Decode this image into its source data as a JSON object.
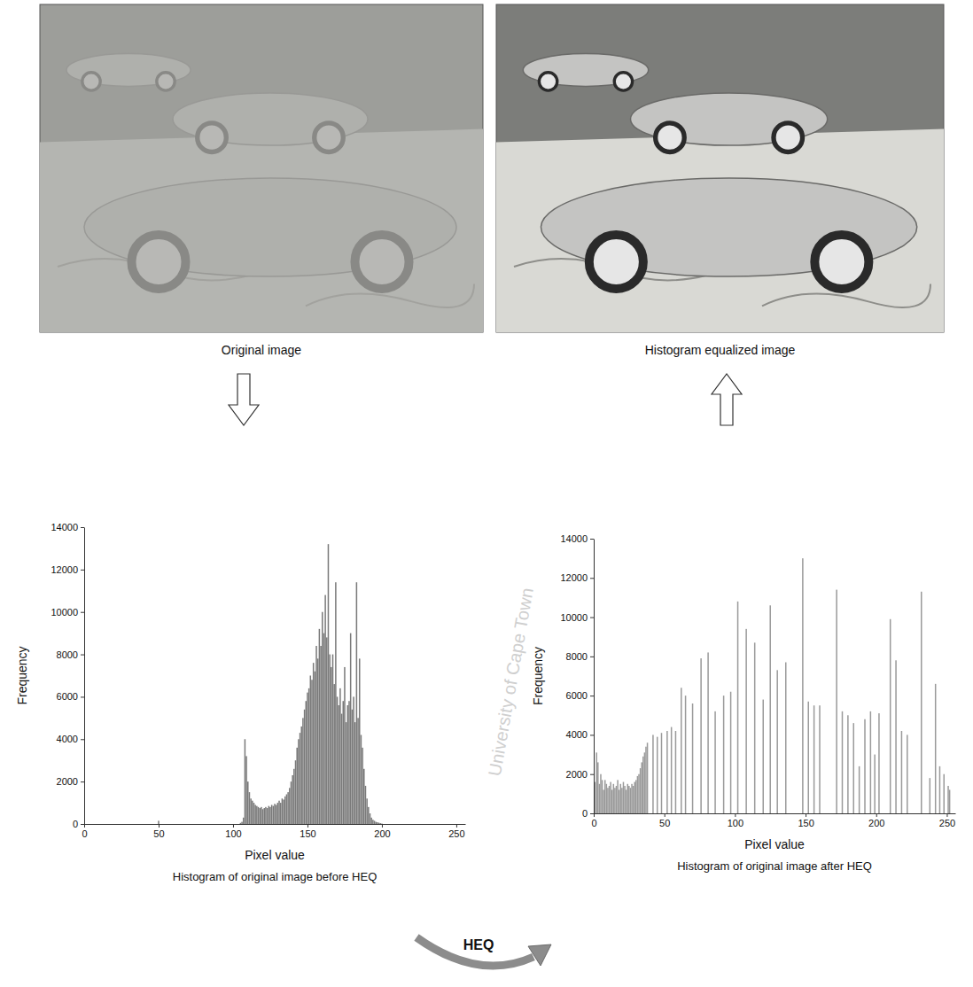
{
  "figure": {
    "images": [
      {
        "caption": "Original image"
      },
      {
        "caption": "Histogram equalized image"
      }
    ],
    "process_label": "HEQ",
    "watermark": "University of Cape Town"
  },
  "chart_data": [
    {
      "type": "bar",
      "title": "Histogram of original image before HEQ",
      "x_label": "Pixel value",
      "y_label": "Frequency",
      "x": [
        50,
        105,
        106,
        107,
        108,
        109,
        110,
        111,
        112,
        113,
        114,
        115,
        116,
        117,
        118,
        119,
        120,
        121,
        122,
        123,
        124,
        125,
        126,
        127,
        128,
        129,
        130,
        131,
        132,
        133,
        134,
        135,
        136,
        137,
        138,
        139,
        140,
        141,
        142,
        143,
        144,
        145,
        146,
        147,
        148,
        149,
        150,
        151,
        152,
        153,
        154,
        155,
        156,
        157,
        158,
        159,
        160,
        161,
        162,
        163,
        164,
        165,
        166,
        167,
        168,
        169,
        170,
        171,
        172,
        173,
        174,
        175,
        176,
        177,
        178,
        179,
        180,
        181,
        182,
        183,
        184,
        185,
        186,
        187,
        188,
        189,
        190,
        191,
        192,
        193,
        194,
        195,
        196,
        197,
        198,
        199,
        200
      ],
      "values": [
        150,
        50,
        100,
        300,
        4000,
        3200,
        2000,
        1500,
        1200,
        1100,
        1000,
        900,
        850,
        800,
        750,
        800,
        700,
        750,
        800,
        750,
        850,
        800,
        900,
        850,
        950,
        900,
        1000,
        1100,
        1000,
        1200,
        1150,
        1300,
        1400,
        1500,
        1700,
        2000,
        2300,
        2600,
        3000,
        3600,
        4000,
        4300,
        4600,
        5000,
        5400,
        5800,
        6200,
        6400,
        7000,
        6800,
        7600,
        7200,
        8400,
        7800,
        9200,
        8400,
        10000,
        9000,
        10800,
        8800,
        13200,
        8000,
        7400,
        8000,
        6600,
        11400,
        6000,
        5600,
        6400,
        5200,
        5800,
        7400,
        4800,
        5600,
        5800,
        9000,
        5400,
        6000,
        4800,
        11400,
        5000,
        7800,
        4200,
        3600,
        2600,
        1800,
        1200,
        800,
        500,
        300,
        200,
        150,
        100,
        80,
        60,
        40,
        20
      ],
      "color": "#7a7a7a",
      "xlim": [
        0,
        256
      ],
      "xticks": [
        0,
        50,
        100,
        150,
        200,
        250
      ],
      "ylim": [
        0,
        14000
      ],
      "yticks": [
        0,
        2000,
        4000,
        6000,
        8000,
        10000,
        12000,
        14000
      ]
    },
    {
      "type": "bar",
      "title": "Histogram of original image after HEQ",
      "x_label": "Pixel value",
      "y_label": "Frequency",
      "x": [
        0,
        1,
        2,
        3,
        4,
        5,
        6,
        7,
        8,
        9,
        10,
        11,
        12,
        13,
        14,
        15,
        16,
        17,
        18,
        19,
        20,
        21,
        22,
        23,
        24,
        25,
        26,
        27,
        28,
        29,
        30,
        31,
        32,
        33,
        34,
        35,
        36,
        37,
        38,
        42,
        45,
        48,
        52,
        55,
        58,
        62,
        65,
        70,
        76,
        81,
        86,
        92,
        97,
        102,
        108,
        114,
        120,
        125,
        130,
        136,
        148,
        152,
        156,
        160,
        172,
        176,
        180,
        184,
        188,
        192,
        196,
        199,
        202,
        210,
        214,
        218,
        222,
        232,
        238,
        242,
        245,
        248,
        251,
        252
      ],
      "values": [
        3800,
        1600,
        3100,
        2600,
        1500,
        2000,
        1700,
        1200,
        1700,
        1500,
        1300,
        1400,
        1600,
        1200,
        1500,
        1300,
        1400,
        1700,
        1200,
        1500,
        1300,
        1600,
        1400,
        1200,
        1500,
        1400,
        1300,
        1500,
        1400,
        1600,
        1700,
        1900,
        2000,
        2300,
        2600,
        2900,
        3100,
        3400,
        3600,
        4000,
        3900,
        4100,
        4200,
        4400,
        4200,
        6400,
        6000,
        5600,
        7900,
        8200,
        5200,
        6000,
        6200,
        10800,
        9400,
        8700,
        5800,
        10600,
        7300,
        7700,
        13000,
        5700,
        5500,
        5500,
        11400,
        5200,
        5000,
        4600,
        2400,
        4800,
        5200,
        3000,
        5100,
        9900,
        7800,
        4200,
        4000,
        11300,
        1800,
        6600,
        2400,
        2000,
        1400,
        1200
      ],
      "color": "#9a9a9a",
      "xlim": [
        0,
        256
      ],
      "xticks": [
        0,
        50,
        100,
        150,
        200,
        250
      ],
      "ylim": [
        0,
        14000
      ],
      "yticks": [
        0,
        2000,
        4000,
        6000,
        8000,
        10000,
        12000,
        14000
      ]
    }
  ]
}
